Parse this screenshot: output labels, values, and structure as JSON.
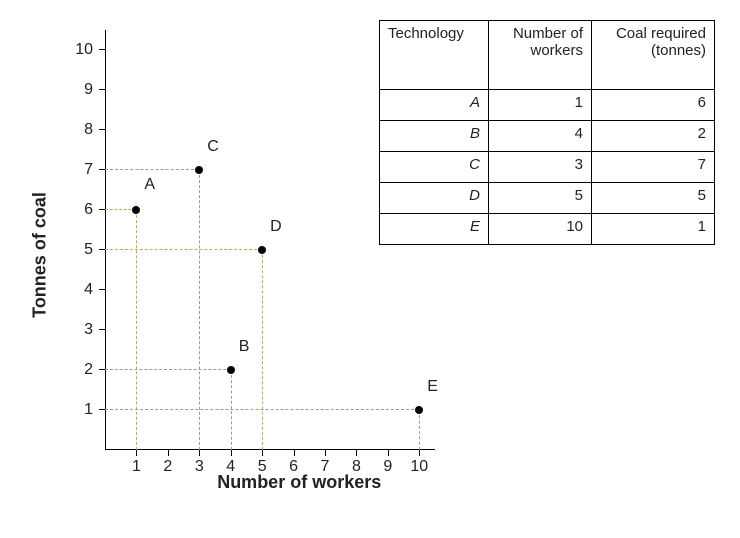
{
  "chart": {
    "type": "scatter",
    "xlabel": "Number of workers",
    "ylabel": "Tonnes of coal",
    "xlim": [
      0,
      10.5
    ],
    "ylim": [
      0,
      10.5
    ],
    "xtick_step": 1,
    "ytick_step": 1,
    "tick_fontsize": 16,
    "label_fontsize": 18,
    "background_color": "#ffffff",
    "axis_color": "#000000",
    "text_color": "#222222",
    "dash_color_gray": "#999999",
    "dash_color_gold": "#c9a55a",
    "point_color": "#000000",
    "point_radius": 4,
    "xticks": [
      1,
      2,
      3,
      4,
      5,
      6,
      7,
      8,
      9,
      10
    ],
    "yticks": [
      1,
      2,
      3,
      4,
      5,
      6,
      7,
      8,
      9,
      10
    ],
    "points": {
      "A": {
        "x": 1,
        "y": 6,
        "label": "A",
        "dash_color": "#c9a55a",
        "label_dx": 8,
        "label_dy": -16
      },
      "B": {
        "x": 4,
        "y": 2,
        "label": "B",
        "dash_color": "#999999",
        "label_dx": 8,
        "label_dy": -14
      },
      "C": {
        "x": 3,
        "y": 7,
        "label": "C",
        "dash_color": "#999999",
        "label_dx": 8,
        "label_dy": -14
      },
      "D": {
        "x": 5,
        "y": 5,
        "label": "D",
        "dash_color": "#c9a55a",
        "label_dx": 8,
        "label_dy": -14
      },
      "E": {
        "x": 10,
        "y": 1,
        "label": "E",
        "dash_color": "#999999",
        "label_dx": 8,
        "label_dy": -14
      }
    }
  },
  "table": {
    "columns": [
      "Technology",
      "Number of workers",
      "Coal required (tonnes)"
    ],
    "rows": [
      [
        "A",
        "1",
        "6"
      ],
      [
        "B",
        "4",
        "2"
      ],
      [
        "C",
        "3",
        "7"
      ],
      [
        "D",
        "5",
        "5"
      ],
      [
        "E",
        "10",
        "1"
      ]
    ],
    "border_color": "#000000",
    "fontsize": 15
  },
  "ticklabels": {
    "x1": "1",
    "x2": "2",
    "x3": "3",
    "x4": "4",
    "x5": "5",
    "x6": "6",
    "x7": "7",
    "x8": "8",
    "x9": "9",
    "x10": "10",
    "y1": "1",
    "y2": "2",
    "y3": "3",
    "y4": "4",
    "y5": "5",
    "y6": "6",
    "y7": "7",
    "y8": "8",
    "y9": "9",
    "y10": "10"
  }
}
